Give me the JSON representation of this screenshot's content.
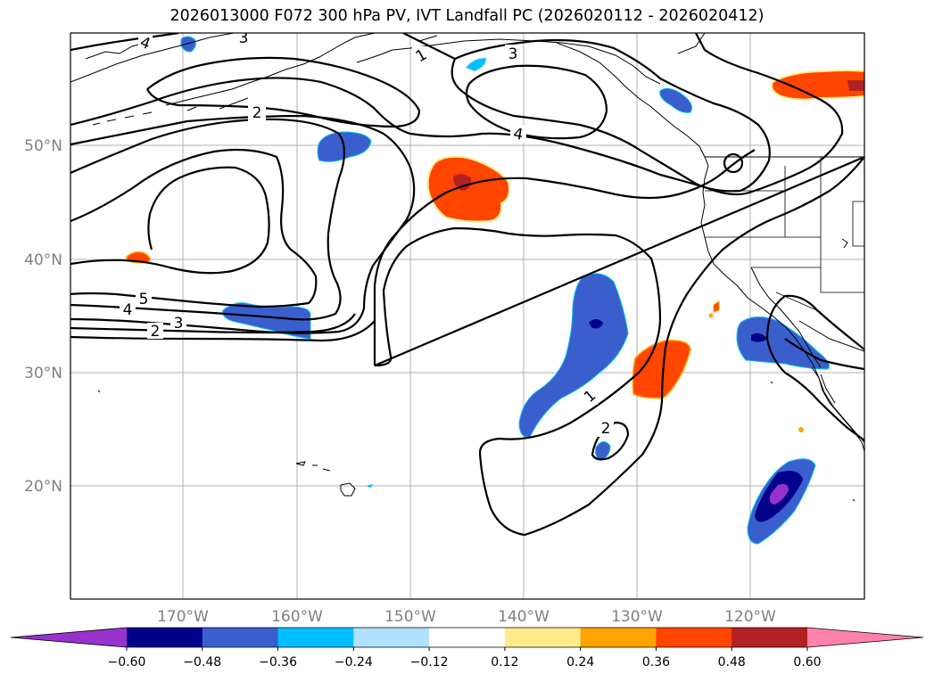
{
  "title": "2026013000 F072 300 hPa PV, IVT Landfall PC (2026020112 - 2026020412)",
  "map": {
    "lon_range": [
      180,
      110
    ],
    "lat_range": [
      10,
      60
    ],
    "lon_ticks": [
      "170°W",
      "160°W",
      "150°W",
      "140°W",
      "130°W",
      "120°W"
    ],
    "lat_ticks": [
      "50°N",
      "40°N",
      "30°N",
      "20°N"
    ],
    "pv_contour_labels": [
      "4",
      "3",
      "1",
      "3",
      "2",
      "4",
      "5",
      "4",
      "3",
      "2",
      "1",
      "2"
    ]
  },
  "colorbar": {
    "colors": [
      "#9932cc",
      "#00008b",
      "#3a5fcd",
      "#00bfff",
      "#b0e2ff",
      "#ffffff",
      "#ffec8b",
      "#ffa500",
      "#ff4500",
      "#b22222",
      "#ff82ab"
    ],
    "tick_labels": [
      "−0.60",
      "−0.48",
      "−0.36",
      "−0.24",
      "−0.12",
      "0.12",
      "0.24",
      "0.36",
      "0.48",
      "0.60"
    ]
  }
}
